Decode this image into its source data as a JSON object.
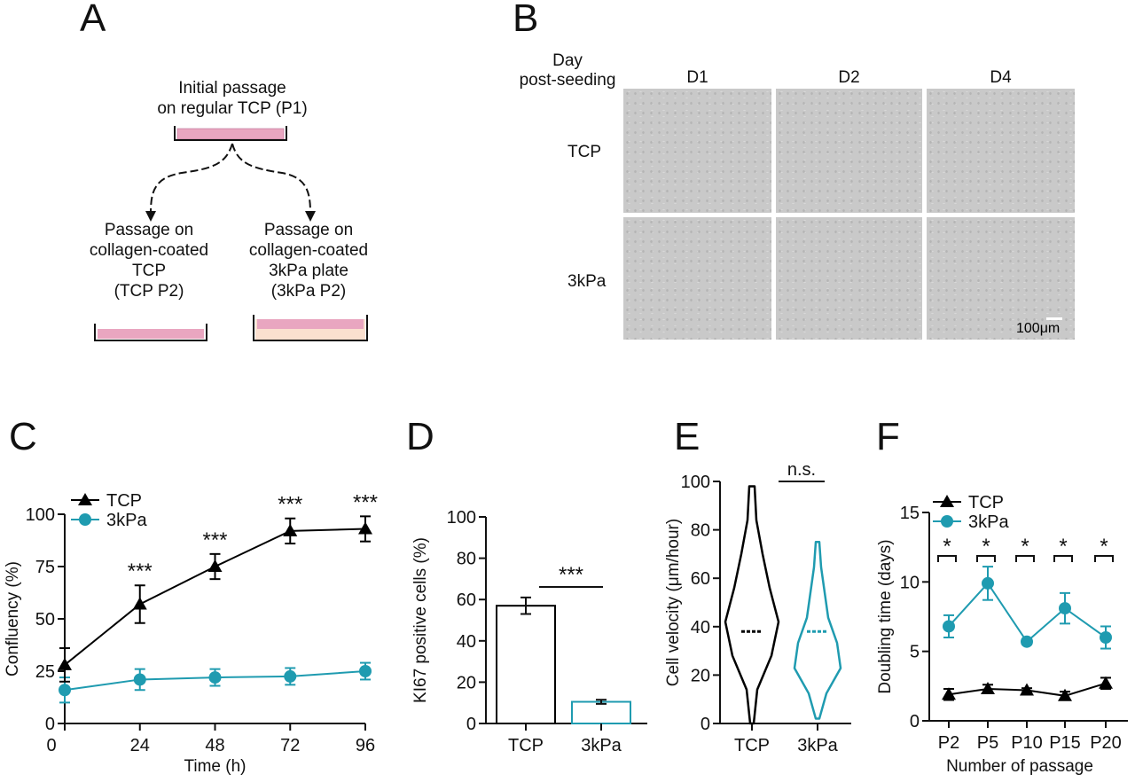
{
  "panels": {
    "a": "A",
    "b": "B",
    "c": "C",
    "d": "D",
    "e": "E",
    "f": "F"
  },
  "diagram": {
    "top": "Initial passage\non regular TCP (P1)",
    "left": "Passage on\ncollagen-coated\nTCP\n(TCP P2)",
    "right": "Passage on\ncollagen-coated\n3kPa plate\n(3kPa P2)"
  },
  "micrographs": {
    "corner": "Day\npost-seeding",
    "columns": [
      "D1",
      "D2",
      "D4"
    ],
    "rows": [
      "TCP",
      "3kPa"
    ],
    "scale_bar": "100μm"
  },
  "colors": {
    "tcp": "#000000",
    "kpa": "#1f9bb0"
  },
  "chart_data": [
    {
      "panel": "C",
      "type": "line",
      "xlabel": "Time (h)",
      "ylabel": "Confluency (%)",
      "xlim": [
        0,
        96
      ],
      "ylim": [
        0,
        100
      ],
      "xticks": [
        0,
        24,
        48,
        72,
        96
      ],
      "yticks": [
        0,
        25,
        50,
        75,
        100
      ],
      "legend": "top-left",
      "x": [
        0,
        24,
        48,
        72,
        96
      ],
      "series": [
        {
          "name": "TCP",
          "marker": "triangle",
          "values": [
            28,
            57,
            75,
            92,
            93
          ],
          "errors": [
            8,
            9,
            6,
            6,
            6
          ]
        },
        {
          "name": "3kPa",
          "marker": "circle",
          "values": [
            16,
            21,
            22,
            22.5,
            25
          ],
          "errors": [
            6,
            5,
            4,
            4,
            4
          ]
        }
      ],
      "annotations": [
        "",
        "***",
        "***",
        "***",
        "***"
      ]
    },
    {
      "panel": "D",
      "type": "bar",
      "ylabel": "KI67 positive cells (%)",
      "ylim": [
        0,
        100
      ],
      "yticks": [
        0,
        20,
        40,
        60,
        80,
        100
      ],
      "categories": [
        "TCP",
        "3kPa"
      ],
      "values": [
        57,
        10.5
      ],
      "errors": [
        4,
        1
      ],
      "significance": "***"
    },
    {
      "panel": "E",
      "type": "violin",
      "ylabel": "Cell velocity (μm/hour)",
      "ylim": [
        0,
        100
      ],
      "yticks": [
        0,
        20,
        40,
        60,
        80,
        100
      ],
      "categories": [
        "TCP",
        "3kPa"
      ],
      "min": [
        0,
        2
      ],
      "max": [
        98,
        75
      ],
      "median": [
        38,
        38
      ],
      "significance": "n.s."
    },
    {
      "panel": "F",
      "type": "line",
      "xlabel": "Number of passage",
      "ylabel": "Doubling time (days)",
      "ylim": [
        0,
        15
      ],
      "yticks": [
        0,
        5,
        10,
        15
      ],
      "legend": "top-left",
      "categories": [
        "P2",
        "P5",
        "P10",
        "P15",
        "P20"
      ],
      "series": [
        {
          "name": "TCP",
          "marker": "triangle",
          "values": [
            1.9,
            2.3,
            2.2,
            1.8,
            2.7
          ],
          "errors": [
            0.4,
            0.3,
            0.15,
            0.3,
            0.4
          ]
        },
        {
          "name": "3kPa",
          "marker": "circle",
          "values": [
            6.8,
            9.9,
            5.7,
            8.1,
            6.0
          ],
          "errors": [
            0.8,
            1.2,
            0.2,
            1.1,
            0.8
          ]
        }
      ],
      "annotations": [
        "*",
        "*",
        "*",
        "*",
        "*"
      ]
    }
  ]
}
